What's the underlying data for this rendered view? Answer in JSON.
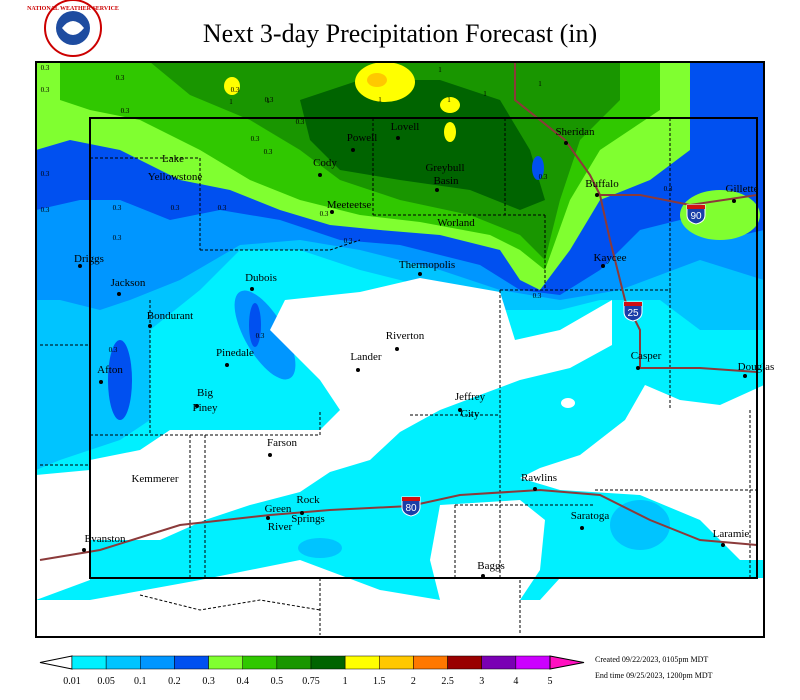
{
  "header": {
    "logo_text": "NATIONAL WEATHER SERVICE",
    "title": "Next 3-day Precipitation Forecast (in)"
  },
  "map": {
    "places": [
      "Lake",
      "Yellowstone",
      "Cody",
      "Powell",
      "Lovell",
      "Sheridan",
      "Greybull",
      "Basin",
      "Meeteetse",
      "Worland",
      "Buffalo",
      "Gillette",
      "Driggs",
      "Jackson",
      "Dubois",
      "Thermopolis",
      "Kaycee",
      "Bondurant",
      "Pinedale",
      "Riverton",
      "Lander",
      "Casper",
      "Douglas",
      "Afton",
      "Big",
      "Piney",
      "Jeffrey",
      "City",
      "Farson",
      "Kemmerer",
      "Rock",
      "Springs",
      "Green",
      "River",
      "Rawlins",
      "Evanston",
      "Saratoga",
      "Laramie",
      "Baggs"
    ],
    "interstates": [
      "90",
      "25",
      "80"
    ],
    "contour_labels": [
      "0.3",
      "0.3",
      "0.3",
      "0.3",
      "0.3",
      "0.3",
      "0.3",
      "0.3",
      "0.3",
      "0.3",
      "0.3",
      "0.3",
      "0.3",
      "0.3",
      "0.3",
      "0.3",
      "0.3",
      "0.3",
      "0.3",
      "0.3",
      "0.3",
      "0.3",
      "1",
      "1",
      "1",
      "1",
      "1",
      "1",
      "1"
    ]
  },
  "legend": {
    "labels": [
      "0.01",
      "0.05",
      "0.1",
      "0.2",
      "0.3",
      "0.4",
      "0.5",
      "0.75",
      "1",
      "1.5",
      "2",
      "2.5",
      "3",
      "4",
      "5"
    ],
    "colors": [
      "#ffffff",
      "#00f0ff",
      "#00c4ff",
      "#0096ff",
      "#0050f0",
      "#80ff30",
      "#30c800",
      "#199600",
      "#006400",
      "#ffff00",
      "#ffc800",
      "#ff7800",
      "#990000",
      "#7a00b4",
      "#cc00ff",
      "#ff10c0"
    ]
  },
  "footer": {
    "created": "Created 09/22/2023, 0105pm MDT",
    "end_time": "End time 09/25/2023, 1200pm MDT"
  }
}
